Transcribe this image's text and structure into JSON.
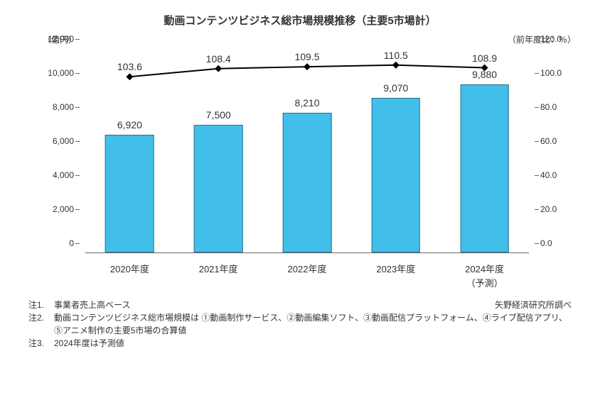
{
  "title": "動画コンテンツビジネス総市場規模推移（主要5市場計）",
  "title_fontsize": 15,
  "chart": {
    "type": "bar+line",
    "background_color": "#ffffff",
    "bar_color": "#42bfe8",
    "bar_border_color": "#2a6f8f",
    "line_color": "#000000",
    "marker_color": "#000000",
    "bar_width_ratio": 0.55,
    "categories": [
      "2020年度",
      "2021年度",
      "2022年度",
      "2023年度",
      "2024年度"
    ],
    "category_sub": [
      "",
      "",
      "",
      "",
      "（予測）"
    ],
    "bars": [
      6920,
      7500,
      8210,
      9070,
      9880
    ],
    "bar_labels": [
      "6,920",
      "7,500",
      "8,210",
      "9,070",
      "9,880"
    ],
    "line": [
      103.6,
      108.4,
      109.5,
      110.5,
      108.9
    ],
    "line_labels": [
      "103.6",
      "108.4",
      "109.5",
      "110.5",
      "108.9"
    ],
    "y_left": {
      "min": 0,
      "max": 12000,
      "ticks": [
        0,
        2000,
        4000,
        6000,
        8000,
        10000,
        12000
      ],
      "tick_labels": [
        "0",
        "2,000",
        "4,000",
        "6,000",
        "8,000",
        "10,000",
        "12,000"
      ],
      "unit": "（億円）"
    },
    "y_right": {
      "min": 0,
      "max": 120,
      "ticks": [
        0,
        20,
        40,
        60,
        80,
        100,
        120
      ],
      "tick_labels": [
        "0.0",
        "20.0",
        "40.0",
        "60.0",
        "80.0",
        "100.0",
        "120.0"
      ],
      "unit": "（前年度比：％）"
    }
  },
  "notes": [
    {
      "k": "注1.",
      "v": "事業者売上高ベース"
    },
    {
      "k": "注2.",
      "v": "動画コンテンツビジネス総市場規模は ①動画制作サービス、②動画編集ソフト、③動画配信プラットフォーム、④ライブ配信アプリ、⑤アニメ制作の主要5市場の合算値"
    },
    {
      "k": "注3.",
      "v": "2024年度は予測値"
    }
  ],
  "source": "矢野経済研究所調べ"
}
